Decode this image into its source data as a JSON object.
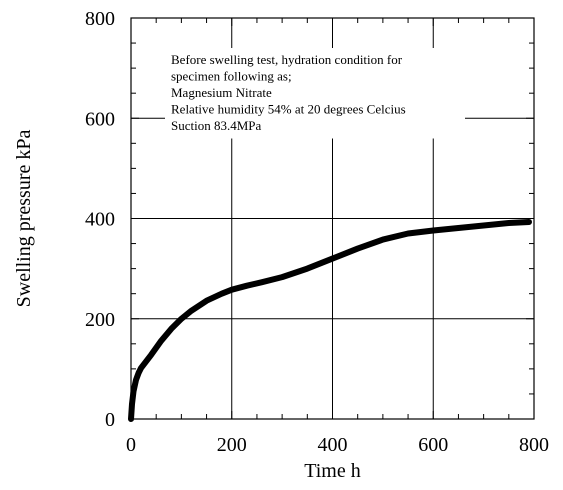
{
  "chart_data": {
    "type": "line",
    "title": "",
    "xlabel": "Time h",
    "ylabel": "Swelling pressure kPa",
    "xlim": [
      0,
      800
    ],
    "ylim": [
      0,
      800
    ],
    "x_ticks": [
      "0",
      "200",
      "400",
      "600",
      "800"
    ],
    "y_ticks": [
      "0",
      "200",
      "400",
      "600",
      "800"
    ],
    "grid": true,
    "legend": "none",
    "annotation": [
      "Before swelling test, hydration condition for",
      "specimen following as;",
      "Magnesium Nitrate",
      "Relative humidity 54% at 20 degrees Celcius",
      "Suction 83.4MPa"
    ],
    "series": [
      {
        "x": [
          0,
          2,
          5,
          10,
          15,
          20,
          30,
          40,
          50,
          60,
          80,
          100,
          120,
          150,
          180,
          200,
          230,
          260,
          300,
          350,
          400,
          450,
          500,
          550,
          600,
          650,
          700,
          750,
          790
        ],
        "y": [
          0,
          30,
          55,
          78,
          92,
          102,
          115,
          128,
          142,
          156,
          180,
          200,
          216,
          236,
          250,
          258,
          266,
          273,
          283,
          300,
          320,
          340,
          358,
          370,
          376,
          381,
          386,
          391,
          393
        ],
        "color": "#000000"
      }
    ]
  }
}
